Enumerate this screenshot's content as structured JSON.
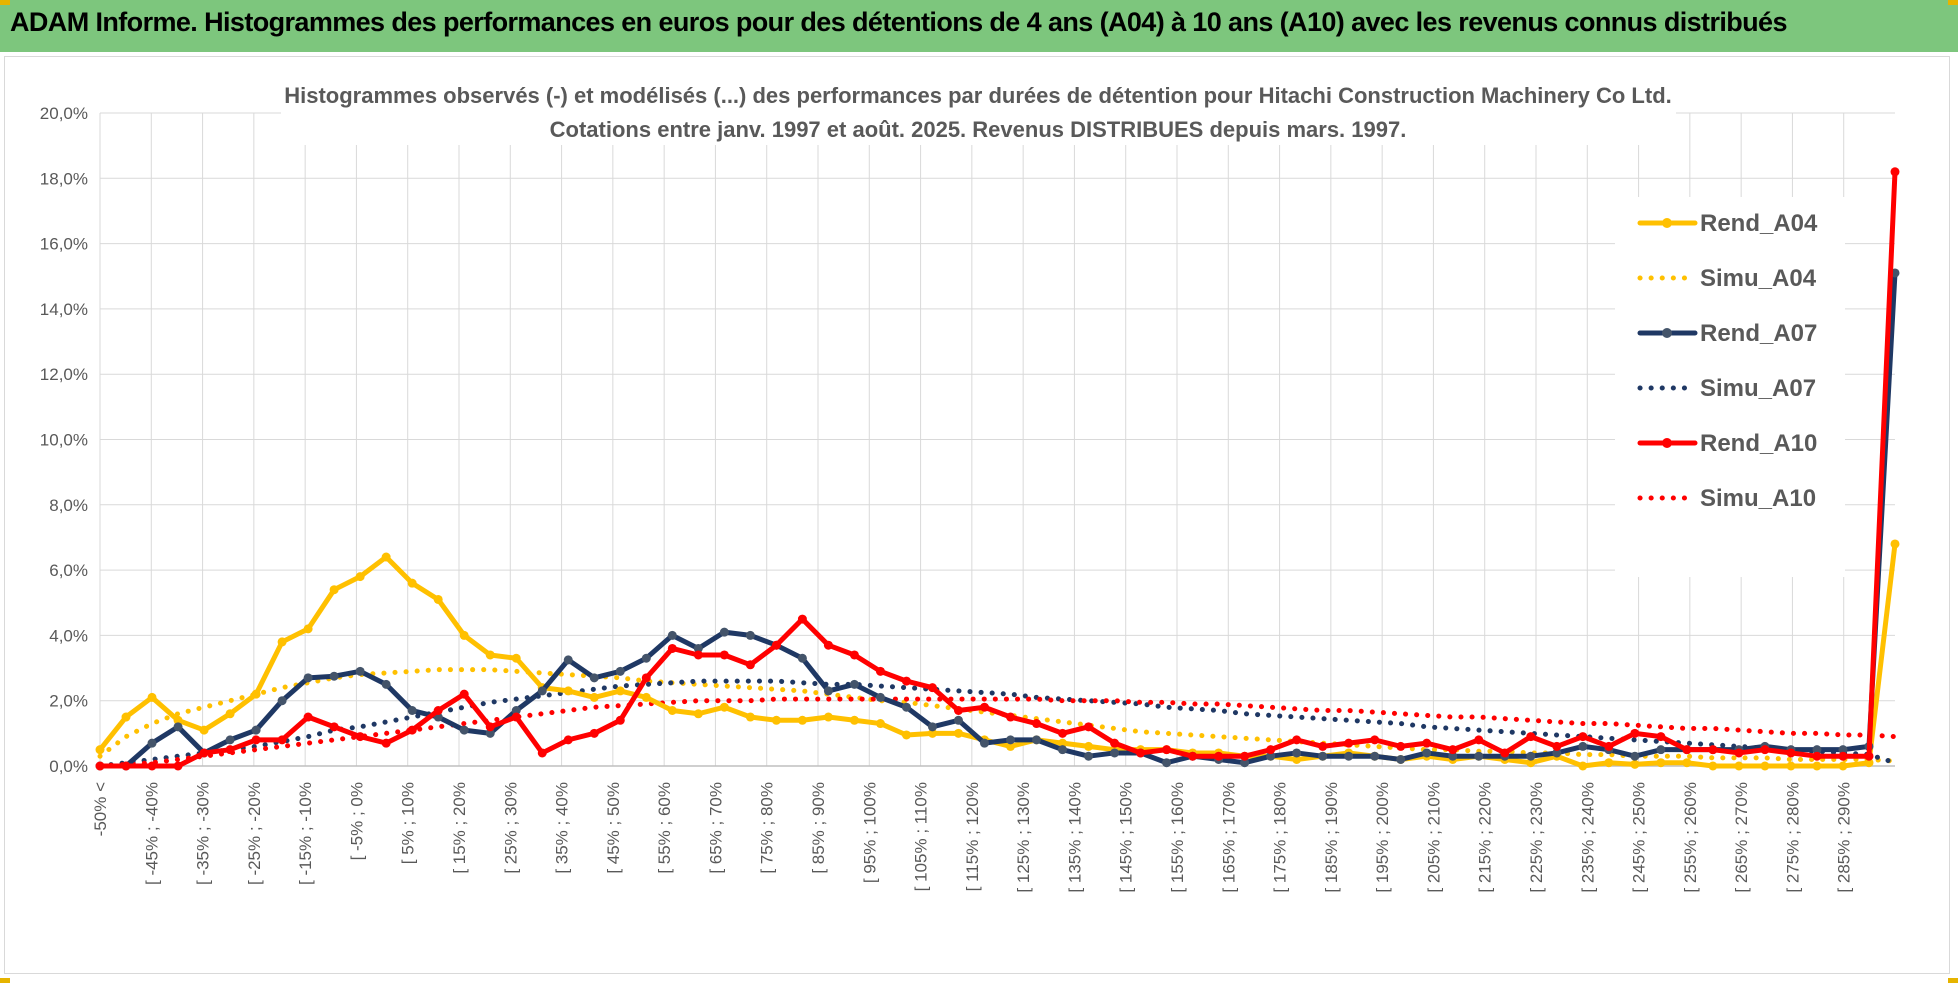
{
  "banner": {
    "title": "ADAM Informe. Histogrammes des performances en euros pour des détentions de 4 ans (A04) à 10 ans (A10) avec les revenus connus distribués"
  },
  "colors": {
    "banner": "#7dc67d",
    "A04": "#ffc000",
    "A07": "#1f3864",
    "A10": "#ff0000",
    "grid": "#d9d9d9",
    "text": "#595959"
  },
  "chart_data": {
    "type": "line",
    "title_line1": "Histogrammes observés (-) et modélisés (...) des performances par durées de détention pour Hitachi Construction Machinery Co Ltd.",
    "title_line2": "Cotations entre janv. 1997 et août. 2025. Revenus DISTRIBUES depuis mars. 1997.",
    "yticks": [
      "0,0%",
      "2,0%",
      "4,0%",
      "6,0%",
      "8,0%",
      "10,0%",
      "12,0%",
      "14,0%",
      "16,0%",
      "18,0%",
      "20,0%"
    ],
    "ylim": [
      0,
      20
    ],
    "grid": true,
    "legend_position": "right",
    "xlabels": [
      "-50% <",
      "[ -45% ; -40%",
      "[ -35% ; -30%",
      "[ -25% ; -20%",
      "[ -15% ; -10%",
      "[ -5% ; 0%",
      "[ 5% ; 10%",
      "[ 15% ; 20%",
      "[ 25% ; 30%",
      "[ 35% ; 40%",
      "[ 45% ; 50%",
      "[ 55% ; 60%",
      "[ 65% ; 70%",
      "[ 75% ; 80%",
      "[ 85% ; 90%",
      "[ 95% ; 100%",
      "[ 105% ; 110%",
      "[ 115% ; 120%",
      "[ 125% ; 130%",
      "[ 135% ; 140%",
      "[ 145% ; 150%",
      "[ 155% ; 160%",
      "[ 165% ; 170%",
      "[ 175% ; 180%",
      "[ 185% ; 190%",
      "[ 195% ; 200%",
      "[ 205% ; 210%",
      "[ 215% ; 220%",
      "[ 225% ; 230%",
      "[ 235% ; 240%",
      "[ 245% ; 250%",
      "[ 255% ; 260%",
      "[ 265% ; 270%",
      "[ 275% ; 280%",
      "[ 285% ; 290%"
    ],
    "series": [
      {
        "name": "Rend_A04",
        "style": "solid",
        "color": "#ffc000",
        "values": [
          0.5,
          1.5,
          2.1,
          1.4,
          1.1,
          1.6,
          2.2,
          3.8,
          4.2,
          5.4,
          5.8,
          6.4,
          5.6,
          5.1,
          4.0,
          3.4,
          3.3,
          2.4,
          2.3,
          2.1,
          2.3,
          2.1,
          1.7,
          1.6,
          1.8,
          1.5,
          1.4,
          1.4,
          1.5,
          1.4,
          1.3,
          0.95,
          1.0,
          1.0,
          0.8,
          0.6,
          0.8,
          0.7,
          0.6,
          0.5,
          0.5,
          0.5,
          0.4,
          0.4,
          0.3,
          0.3,
          0.2,
          0.3,
          0.4,
          0.3,
          0.2,
          0.3,
          0.2,
          0.3,
          0.2,
          0.1,
          0.3,
          0.0,
          0.1,
          0.05,
          0.1,
          0.1,
          0.0,
          0.0,
          0.0,
          0.0,
          0.0,
          0.0,
          0.1,
          6.8
        ]
      },
      {
        "name": "Simu_A04",
        "style": "dotted",
        "color": "#ffc000",
        "values": [
          0.3,
          0.9,
          1.3,
          1.6,
          1.8,
          2.0,
          2.2,
          2.4,
          2.55,
          2.7,
          2.8,
          2.85,
          2.9,
          2.95,
          2.95,
          2.95,
          2.9,
          2.85,
          2.8,
          2.75,
          2.7,
          2.6,
          2.55,
          2.5,
          2.45,
          2.4,
          2.35,
          2.3,
          2.2,
          2.1,
          2.0,
          1.95,
          1.85,
          1.75,
          1.65,
          1.55,
          1.45,
          1.35,
          1.25,
          1.15,
          1.05,
          1.0,
          0.95,
          0.9,
          0.85,
          0.8,
          0.75,
          0.7,
          0.65,
          0.6,
          0.55,
          0.5,
          0.5,
          0.45,
          0.45,
          0.4,
          0.4,
          0.35,
          0.35,
          0.3,
          0.3,
          0.3,
          0.25,
          0.25,
          0.25,
          0.2,
          0.2,
          0.2,
          0.2,
          0.15
        ]
      },
      {
        "name": "Rend_A07",
        "style": "solid",
        "color": "#1f3864",
        "values": [
          0.0,
          0.0,
          0.7,
          1.2,
          0.4,
          0.8,
          1.1,
          2.0,
          2.7,
          2.75,
          2.9,
          2.5,
          1.7,
          1.5,
          1.1,
          1.0,
          1.7,
          2.3,
          3.25,
          2.7,
          2.9,
          3.3,
          4.0,
          3.6,
          4.1,
          4.0,
          3.7,
          3.3,
          2.3,
          2.5,
          2.1,
          1.8,
          1.2,
          1.4,
          0.7,
          0.8,
          0.8,
          0.5,
          0.3,
          0.4,
          0.4,
          0.1,
          0.3,
          0.2,
          0.1,
          0.3,
          0.4,
          0.3,
          0.3,
          0.3,
          0.2,
          0.4,
          0.3,
          0.3,
          0.3,
          0.3,
          0.4,
          0.6,
          0.5,
          0.3,
          0.5,
          0.5,
          0.5,
          0.5,
          0.6,
          0.5,
          0.5,
          0.5,
          0.6,
          15.1
        ]
      },
      {
        "name": "Simu_A07",
        "style": "dotted",
        "color": "#1f3864",
        "values": [
          0.0,
          0.1,
          0.2,
          0.3,
          0.4,
          0.5,
          0.6,
          0.75,
          0.9,
          1.1,
          1.2,
          1.35,
          1.5,
          1.65,
          1.8,
          1.95,
          2.05,
          2.15,
          2.25,
          2.35,
          2.45,
          2.5,
          2.55,
          2.6,
          2.6,
          2.6,
          2.6,
          2.55,
          2.5,
          2.5,
          2.45,
          2.4,
          2.35,
          2.3,
          2.25,
          2.2,
          2.1,
          2.05,
          2.0,
          1.95,
          1.9,
          1.8,
          1.75,
          1.7,
          1.6,
          1.55,
          1.5,
          1.45,
          1.4,
          1.35,
          1.3,
          1.2,
          1.15,
          1.1,
          1.05,
          1.0,
          0.95,
          0.9,
          0.85,
          0.8,
          0.75,
          0.7,
          0.65,
          0.6,
          0.55,
          0.5,
          0.45,
          0.4,
          0.35,
          0.1
        ]
      },
      {
        "name": "Rend_A10",
        "style": "solid",
        "color": "#ff0000",
        "values": [
          0.0,
          0.0,
          0.0,
          0.0,
          0.4,
          0.5,
          0.8,
          0.8,
          1.5,
          1.2,
          0.9,
          0.7,
          1.1,
          1.7,
          2.2,
          1.2,
          1.5,
          0.4,
          0.8,
          1.0,
          1.4,
          2.7,
          3.6,
          3.4,
          3.4,
          3.1,
          3.7,
          4.5,
          3.7,
          3.4,
          2.9,
          2.6,
          2.4,
          1.7,
          1.8,
          1.5,
          1.3,
          1.0,
          1.2,
          0.7,
          0.4,
          0.5,
          0.3,
          0.3,
          0.3,
          0.5,
          0.8,
          0.6,
          0.7,
          0.8,
          0.6,
          0.7,
          0.5,
          0.8,
          0.4,
          0.9,
          0.6,
          0.9,
          0.6,
          1.0,
          0.9,
          0.5,
          0.5,
          0.4,
          0.5,
          0.4,
          0.3,
          0.3,
          0.3,
          18.2
        ]
      },
      {
        "name": "Simu_A10",
        "style": "dotted",
        "color": "#ff0000",
        "values": [
          0.0,
          0.05,
          0.1,
          0.2,
          0.3,
          0.4,
          0.5,
          0.6,
          0.7,
          0.8,
          0.9,
          1.0,
          1.1,
          1.2,
          1.3,
          1.4,
          1.5,
          1.6,
          1.7,
          1.8,
          1.85,
          1.9,
          1.95,
          2.0,
          2.0,
          2.0,
          2.05,
          2.05,
          2.05,
          2.05,
          2.05,
          2.05,
          2.05,
          2.05,
          2.05,
          2.05,
          2.05,
          2.0,
          2.0,
          2.0,
          1.95,
          1.95,
          1.9,
          1.9,
          1.85,
          1.8,
          1.75,
          1.7,
          1.7,
          1.65,
          1.6,
          1.55,
          1.5,
          1.5,
          1.45,
          1.4,
          1.35,
          1.3,
          1.3,
          1.25,
          1.2,
          1.15,
          1.15,
          1.1,
          1.05,
          1.0,
          1.0,
          0.95,
          0.95,
          0.9
        ]
      }
    ]
  }
}
